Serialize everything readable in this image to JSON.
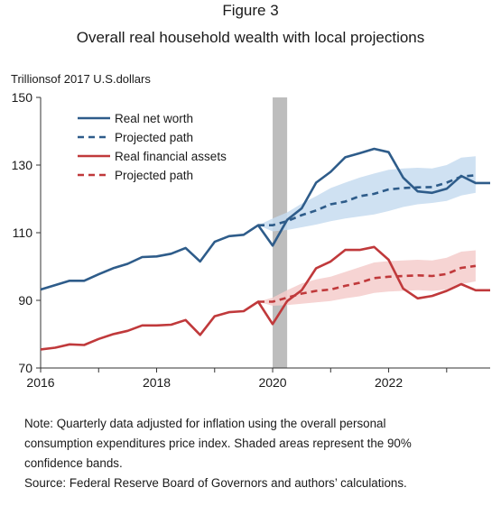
{
  "figure": {
    "label": "Figure 3",
    "title": "Overall real household wealth with local projections",
    "unit_label": "Trillionsof 2017 U.S.dollars"
  },
  "notes": [
    "Note: Quarterly data adjusted for inflation using the overall personal",
    "consumption expenditures price index. Shaded areas represent the 90%",
    "confidence bands.",
    "Source: Federal Reserve Board of Governors and authors’ calculations."
  ],
  "chart_data": {
    "type": "line",
    "ylabel": "Trillionsof 2017 U.S.dollars",
    "xlim": [
      2016.0,
      2023.75
    ],
    "ylim": [
      70,
      150
    ],
    "yticks": [
      70,
      90,
      110,
      130,
      150
    ],
    "xticks": [
      2016,
      2018,
      2020,
      2022
    ],
    "x_tick_labels": [
      "2016",
      "2018",
      "2020",
      "2022"
    ],
    "y_tick_labels": [
      "70",
      "90",
      "110",
      "130",
      "150"
    ],
    "grid": false,
    "legend_position": "top-left",
    "recession_band": [
      2020.0,
      2020.25
    ],
    "series": [
      {
        "name": "Real net worth",
        "style": "solid",
        "color": "#2e5c8a",
        "x": [
          2016.0,
          2016.25,
          2016.5,
          2016.75,
          2017.0,
          2017.25,
          2017.5,
          2017.75,
          2018.0,
          2018.25,
          2018.5,
          2018.75,
          2019.0,
          2019.25,
          2019.5,
          2019.75,
          2020.0,
          2020.25,
          2020.5,
          2020.75,
          2021.0,
          2021.25,
          2021.5,
          2021.75,
          2022.0,
          2022.25,
          2022.5,
          2022.75,
          2023.0,
          2023.25,
          2023.5,
          2023.75
        ],
        "y": [
          93.2,
          94.5,
          95.8,
          95.8,
          97.7,
          99.5,
          100.8,
          102.8,
          103.0,
          103.8,
          105.5,
          101.5,
          107.3,
          109.0,
          109.4,
          112.2,
          106.2,
          113.8,
          117.2,
          124.8,
          128.0,
          132.3,
          133.5,
          134.8,
          133.8,
          126.3,
          122.2,
          121.8,
          123.0,
          126.8,
          124.7,
          124.7
        ]
      },
      {
        "name": "Projected path",
        "style": "dashed",
        "color": "#2e5c8a",
        "x": [
          2019.75,
          2020.0,
          2020.25,
          2020.5,
          2020.75,
          2021.0,
          2021.25,
          2021.5,
          2021.75,
          2022.0,
          2022.25,
          2022.5,
          2022.75,
          2023.0,
          2023.25,
          2023.5
        ],
        "y": [
          112.2,
          112.2,
          113.4,
          115.2,
          116.6,
          118.4,
          119.2,
          120.8,
          121.5,
          122.8,
          123.2,
          123.4,
          123.5,
          124.8,
          126.6,
          127.0
        ],
        "band_lower": [
          112.2,
          110.4,
          110.8,
          111.6,
          112.4,
          113.4,
          114.2,
          114.8,
          115.4,
          116.4,
          117.6,
          118.4,
          118.8,
          119.4,
          121.0,
          121.8
        ],
        "band_upper": [
          112.2,
          114.2,
          116.0,
          118.6,
          120.8,
          123.2,
          124.8,
          126.3,
          127.5,
          128.6,
          129.0,
          129.2,
          129.0,
          130.0,
          132.2,
          132.6
        ]
      },
      {
        "name": "Real financial assets",
        "style": "solid",
        "color": "#c0393b",
        "x": [
          2016.0,
          2016.25,
          2016.5,
          2016.75,
          2017.0,
          2017.25,
          2017.5,
          2017.75,
          2018.0,
          2018.25,
          2018.5,
          2018.75,
          2019.0,
          2019.25,
          2019.5,
          2019.75,
          2020.0,
          2020.25,
          2020.5,
          2020.75,
          2021.0,
          2021.25,
          2021.5,
          2021.75,
          2022.0,
          2022.25,
          2022.5,
          2022.75,
          2023.0,
          2023.25,
          2023.5,
          2023.75
        ],
        "y": [
          75.5,
          76.0,
          77.0,
          76.8,
          78.6,
          80.0,
          81.0,
          82.6,
          82.6,
          82.8,
          84.2,
          79.8,
          85.3,
          86.5,
          86.8,
          89.6,
          83.0,
          89.8,
          93.0,
          99.5,
          101.5,
          104.9,
          104.9,
          105.8,
          102.0,
          93.5,
          90.6,
          91.3,
          92.8,
          94.8,
          93.0,
          93.0
        ]
      },
      {
        "name": "Projected path",
        "style": "dashed",
        "color": "#c0393b",
        "x": [
          2019.75,
          2020.0,
          2020.25,
          2020.5,
          2020.75,
          2021.0,
          2021.25,
          2021.5,
          2021.75,
          2022.0,
          2022.25,
          2022.5,
          2022.75,
          2023.0,
          2023.25,
          2023.5
        ],
        "y": [
          89.6,
          89.6,
          90.8,
          92.0,
          92.8,
          93.2,
          94.3,
          95.2,
          96.6,
          97.0,
          97.2,
          97.4,
          97.2,
          97.8,
          99.6,
          100.2
        ],
        "band_lower": [
          89.6,
          88.4,
          88.6,
          89.0,
          89.4,
          89.8,
          90.6,
          91.2,
          92.2,
          92.6,
          92.8,
          93.0,
          92.8,
          93.2,
          94.8,
          95.6
        ],
        "band_upper": [
          89.6,
          90.8,
          93.0,
          95.0,
          96.2,
          97.0,
          98.4,
          99.8,
          101.2,
          101.6,
          101.8,
          102.0,
          101.8,
          102.6,
          104.4,
          104.8
        ]
      }
    ]
  }
}
